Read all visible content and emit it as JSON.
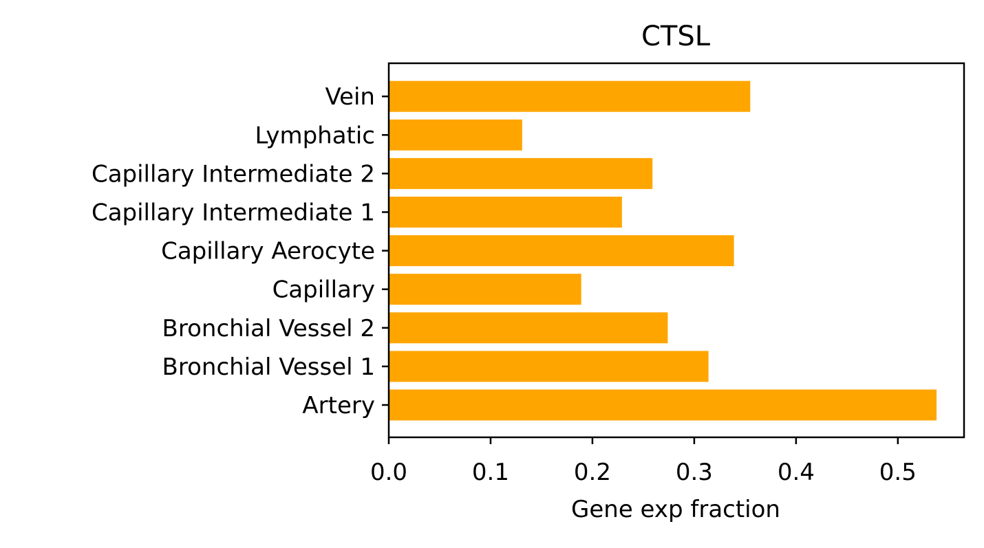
{
  "chart_data": {
    "type": "bar",
    "orientation": "horizontal",
    "title": "CTSL",
    "xlabel": "Gene exp fraction",
    "ylabel": "",
    "categories": [
      "Artery",
      "Bronchial Vessel 1",
      "Bronchial Vessel 2",
      "Capillary",
      "Capillary Aerocyte",
      "Capillary Intermediate 1",
      "Capillary Intermediate 2",
      "Lymphatic",
      "Vein"
    ],
    "values": [
      0.538,
      0.314,
      0.274,
      0.189,
      0.339,
      0.229,
      0.259,
      0.131,
      0.355
    ],
    "xlim": [
      0.0,
      0.565
    ],
    "xticks": [
      "0.0",
      "0.1",
      "0.2",
      "0.3",
      "0.4",
      "0.5"
    ],
    "bar_color": "#FFA500",
    "grid": false,
    "legend": false
  }
}
